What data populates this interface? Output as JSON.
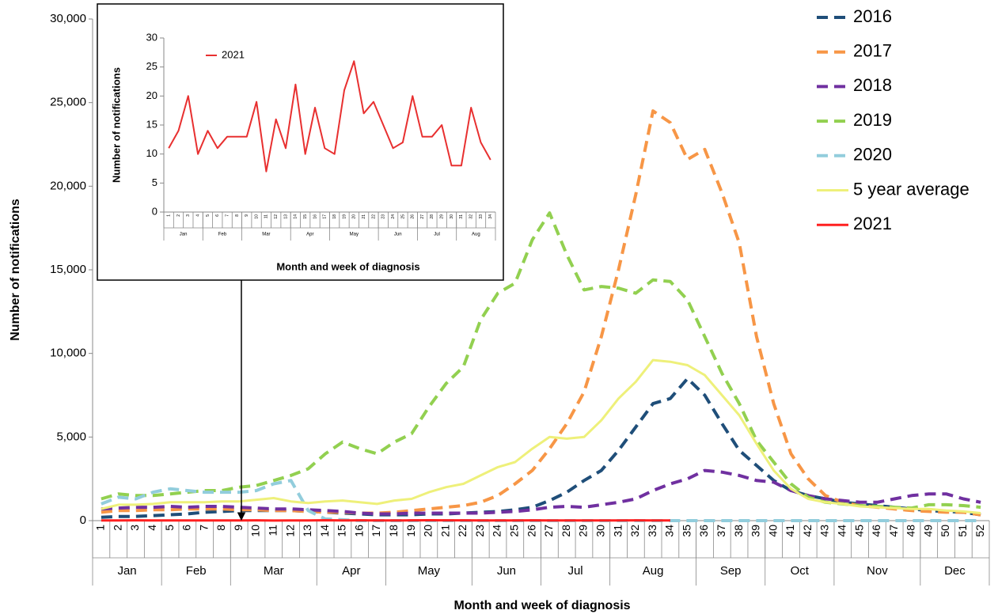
{
  "chart_data": [
    {
      "type": "line",
      "y_label": "Number of notifications",
      "x_label": "Month and week of diagnosis",
      "categories": [
        "1",
        "2",
        "3",
        "4",
        "5",
        "6",
        "7",
        "8",
        "9",
        "10",
        "11",
        "12",
        "13",
        "14",
        "15",
        "16",
        "17",
        "18",
        "19",
        "20",
        "21",
        "22",
        "23",
        "24",
        "25",
        "26",
        "27",
        "28",
        "29",
        "30",
        "31",
        "32",
        "33",
        "34",
        "35",
        "36",
        "37",
        "38",
        "39",
        "40",
        "41",
        "42",
        "43",
        "44",
        "45",
        "46",
        "47",
        "48",
        "49",
        "50",
        "51",
        "52"
      ],
      "month_groups": [
        {
          "label": "Jan",
          "weeks": [
            1,
            4
          ]
        },
        {
          "label": "Feb",
          "weeks": [
            5,
            8
          ]
        },
        {
          "label": "Mar",
          "weeks": [
            9,
            13
          ]
        },
        {
          "label": "Apr",
          "weeks": [
            14,
            17
          ]
        },
        {
          "label": "May",
          "weeks": [
            18,
            22
          ]
        },
        {
          "label": "Jun",
          "weeks": [
            23,
            26
          ]
        },
        {
          "label": "Jul",
          "weeks": [
            27,
            30
          ]
        },
        {
          "label": "Aug",
          "weeks": [
            31,
            35
          ]
        },
        {
          "label": "Sep",
          "weeks": [
            36,
            39
          ]
        },
        {
          "label": "Oct",
          "weeks": [
            40,
            43
          ]
        },
        {
          "label": "Nov",
          "weeks": [
            44,
            48
          ]
        },
        {
          "label": "Dec",
          "weeks": [
            49,
            52
          ]
        }
      ],
      "ylim": [
        0,
        30000
      ],
      "yticks": [
        0,
        {
          "value": 5000,
          "label": "5,000"
        },
        {
          "value": 10000,
          "label": "10,000"
        },
        {
          "value": 15000,
          "label": "15,000"
        },
        {
          "value": 20000,
          "label": "20,000"
        },
        {
          "value": 25000,
          "label": "25,000"
        },
        {
          "value": 30000,
          "label": "30,000"
        }
      ],
      "series": [
        {
          "name": "2016",
          "color": "#1f4e79",
          "dashed": true,
          "values": [
            200,
            250,
            250,
            300,
            350,
            400,
            500,
            550,
            600,
            600,
            600,
            600,
            550,
            500,
            450,
            400,
            350,
            350,
            350,
            400,
            400,
            450,
            500,
            550,
            650,
            800,
            1200,
            1700,
            2400,
            3000,
            4200,
            5600,
            7000,
            7300,
            8500,
            7500,
            5800,
            4200,
            3300,
            2400,
            1800,
            1500,
            1300,
            1100,
            1000,
            900,
            800,
            700,
            600,
            550,
            500,
            350
          ]
        },
        {
          "name": "2017",
          "color": "#f79646",
          "dashed": true,
          "values": [
            500,
            600,
            600,
            650,
            650,
            700,
            700,
            700,
            650,
            650,
            600,
            600,
            550,
            500,
            500,
            450,
            450,
            500,
            600,
            700,
            800,
            900,
            1100,
            1500,
            2200,
            3000,
            4300,
            5800,
            7700,
            11000,
            15000,
            19500,
            24500,
            23800,
            21600,
            22200,
            19600,
            16600,
            11000,
            7000,
            4000,
            2500,
            1500,
            1100,
            900,
            800,
            700,
            600,
            550,
            500,
            500,
            350
          ]
        },
        {
          "name": "2018",
          "color": "#7030a0",
          "dashed": true,
          "values": [
            700,
            750,
            800,
            800,
            850,
            800,
            850,
            850,
            800,
            750,
            700,
            700,
            650,
            600,
            550,
            450,
            400,
            400,
            450,
            450,
            450,
            450,
            450,
            500,
            550,
            650,
            800,
            850,
            800,
            950,
            1100,
            1300,
            1800,
            2200,
            2500,
            3000,
            2900,
            2700,
            2400,
            2300,
            1800,
            1500,
            1300,
            1200,
            1100,
            1100,
            1300,
            1500,
            1600,
            1600,
            1300,
            1100
          ]
        },
        {
          "name": "2019",
          "color": "#92d050",
          "dashed": true,
          "values": [
            1300,
            1600,
            1500,
            1500,
            1600,
            1700,
            1800,
            1800,
            2000,
            2100,
            2400,
            2700,
            3100,
            4000,
            4700,
            4300,
            4000,
            4700,
            5200,
            6800,
            8200,
            9200,
            12000,
            13600,
            14200,
            16800,
            18400,
            15900,
            13800,
            14000,
            13900,
            13600,
            14400,
            14300,
            13200,
            11000,
            8800,
            7000,
            4800,
            3500,
            2200,
            1400,
            1100,
            1000,
            900,
            850,
            800,
            750,
            950,
            950,
            900,
            800
          ]
        },
        {
          "name": "2020",
          "color": "#92cddc",
          "dashed": true,
          "values": [
            1000,
            1400,
            1300,
            1700,
            1900,
            1800,
            1700,
            1700,
            1700,
            1800,
            2200,
            2400,
            600,
            100,
            50,
            0,
            0,
            0,
            0,
            0,
            0,
            0,
            0,
            0,
            0,
            0,
            0,
            0,
            0,
            0,
            0,
            0,
            0,
            0,
            0,
            0,
            0,
            0,
            0,
            0,
            0,
            0,
            0,
            0,
            0,
            0,
            0,
            0,
            0,
            0,
            0,
            0
          ]
        },
        {
          "name": "5 year average",
          "color": "#eef07a",
          "dashed": false,
          "values": [
            700,
            950,
            950,
            1000,
            1100,
            1100,
            1100,
            1150,
            1150,
            1250,
            1350,
            1150,
            1050,
            1150,
            1200,
            1100,
            1000,
            1200,
            1300,
            1700,
            2000,
            2200,
            2700,
            3200,
            3500,
            4300,
            5000,
            4900,
            5000,
            6000,
            7300,
            8300,
            9600,
            9500,
            9300,
            8700,
            7500,
            6300,
            4600,
            3000,
            1900,
            1300,
            1100,
            1000,
            850,
            800,
            750,
            700,
            700,
            600,
            550,
            450
          ]
        },
        {
          "name": "2021",
          "color": "#ff2020",
          "dashed": false,
          "values": [
            11,
            14,
            20,
            10,
            14,
            11,
            13,
            13,
            13,
            19,
            7,
            16,
            11,
            22,
            10,
            18,
            11,
            10,
            21,
            26,
            17,
            19,
            15,
            11,
            12,
            20,
            13,
            13,
            15,
            8,
            8,
            18,
            12,
            9,
            null,
            null,
            null,
            null,
            null,
            null,
            null,
            null,
            null,
            null,
            null,
            null,
            null,
            null,
            null,
            null,
            null,
            null
          ]
        }
      ]
    },
    {
      "type": "line",
      "y_label": "Number of notifications",
      "x_label": "Month and week of diagnosis",
      "categories": [
        "1",
        "2",
        "3",
        "4",
        "5",
        "6",
        "7",
        "8",
        "9",
        "10",
        "11",
        "12",
        "13",
        "14",
        "15",
        "16",
        "17",
        "18",
        "19",
        "20",
        "21",
        "22",
        "23",
        "24",
        "25",
        "26",
        "27",
        "28",
        "29",
        "30",
        "31",
        "32",
        "33",
        "34"
      ],
      "month_groups": [
        {
          "label": "Jan",
          "weeks": [
            1,
            4
          ]
        },
        {
          "label": "Feb",
          "weeks": [
            5,
            8
          ]
        },
        {
          "label": "Mar",
          "weeks": [
            9,
            13
          ]
        },
        {
          "label": "Apr",
          "weeks": [
            14,
            17
          ]
        },
        {
          "label": "May",
          "weeks": [
            18,
            22
          ]
        },
        {
          "label": "Jun",
          "weeks": [
            23,
            26
          ]
        },
        {
          "label": "Jul",
          "weeks": [
            27,
            30
          ]
        },
        {
          "label": "Aug",
          "weeks": [
            31,
            34
          ]
        }
      ],
      "ylim": [
        0,
        30
      ],
      "yticks": [
        0,
        5,
        10,
        15,
        20,
        25,
        30
      ],
      "series": [
        {
          "name": "2021",
          "color": "#e83030",
          "dashed": false,
          "values": [
            11,
            14,
            20,
            10,
            14,
            11,
            13,
            13,
            13,
            19,
            7,
            16,
            11,
            22,
            10,
            18,
            11,
            10,
            21,
            26,
            17,
            19,
            15,
            11,
            12,
            20,
            13,
            13,
            15,
            8,
            8,
            18,
            12,
            9
          ]
        }
      ]
    }
  ]
}
